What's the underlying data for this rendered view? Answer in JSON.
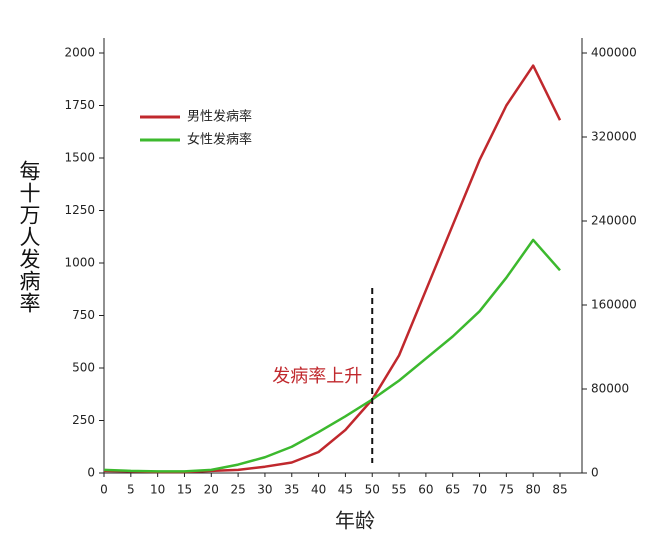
{
  "chart_data": {
    "type": "line",
    "x_label": "年龄",
    "y_label": "每十万人发病率",
    "x": [
      0,
      5,
      10,
      15,
      20,
      25,
      30,
      35,
      40,
      45,
      50,
      55,
      60,
      65,
      70,
      75,
      80,
      85
    ],
    "xlim": [
      0,
      85
    ],
    "xticks": [
      0,
      5,
      10,
      15,
      20,
      25,
      30,
      35,
      40,
      45,
      50,
      55,
      60,
      65,
      70,
      75,
      80,
      85
    ],
    "ylim": [
      0,
      2000
    ],
    "yticks": [
      0,
      250,
      500,
      750,
      1000,
      1250,
      1500,
      1750,
      2000
    ],
    "y2lim": [
      0,
      400000
    ],
    "y2ticks": [
      0,
      80000,
      160000,
      240000,
      320000,
      400000
    ],
    "series": [
      {
        "name": "男性发病率",
        "color": "#c0282d",
        "values": [
          10,
          8,
          5,
          5,
          10,
          15,
          30,
          50,
          100,
          205,
          350,
          560,
          870,
          1180,
          1490,
          1750,
          1940,
          1680
        ]
      },
      {
        "name": "女性发病率",
        "color": "#3cb92e",
        "values": [
          15,
          10,
          8,
          8,
          15,
          40,
          75,
          125,
          195,
          270,
          350,
          440,
          545,
          650,
          770,
          930,
          1110,
          965
        ]
      }
    ],
    "legend": "upper-left",
    "annotation": {
      "text": "发病率上升",
      "x": 50,
      "color": "#c0282d"
    }
  }
}
